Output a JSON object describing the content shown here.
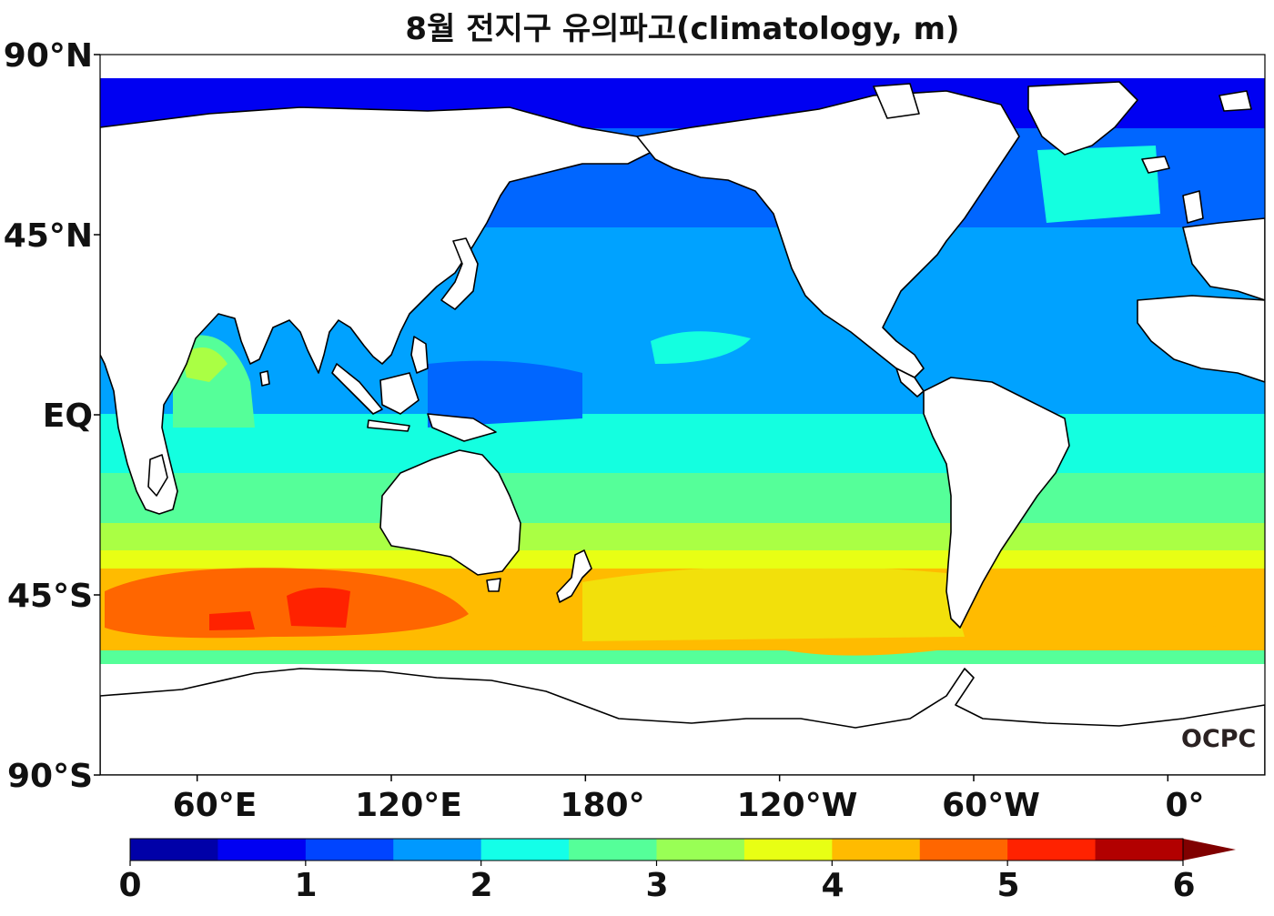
{
  "title": "8월 전지구 유의파고(climatology, m)",
  "map": {
    "projection": "equirectangular",
    "lon_range_east": [
      30,
      390
    ],
    "lat_range": [
      -90,
      90
    ],
    "lat_ticks": [
      {
        "lat": 90,
        "label": "90°N"
      },
      {
        "lat": 45,
        "label": "45°N"
      },
      {
        "lat": 0,
        "label": "EQ"
      },
      {
        "lat": -45,
        "label": "45°S"
      },
      {
        "lat": -90,
        "label": "90°S"
      }
    ],
    "lon_ticks": [
      {
        "lon": 60,
        "label": "60°E"
      },
      {
        "lon": 120,
        "label": "120°E"
      },
      {
        "lon": 180,
        "label": "180°"
      },
      {
        "lon": 240,
        "label": "120°W"
      },
      {
        "lon": 300,
        "label": "60°W"
      },
      {
        "lon": 360,
        "label": "0°"
      }
    ],
    "land_color": "#ffffff",
    "coastline_color": "#000000"
  },
  "colorbar": {
    "min": 0,
    "max": 6,
    "step": 0.5,
    "extend": "max",
    "tick_labels": [
      "0",
      "1",
      "2",
      "3",
      "4",
      "5",
      "6"
    ],
    "colors": [
      "#0000a8",
      "#0000f2",
      "#0044ff",
      "#0099ff",
      "#14ffe8",
      "#55ff99",
      "#99ff55",
      "#e8ff14",
      "#ffbb00",
      "#ff6600",
      "#ff2200",
      "#b20000"
    ],
    "extend_color": "#800000"
  },
  "logo": {
    "text": "OCPC"
  }
}
